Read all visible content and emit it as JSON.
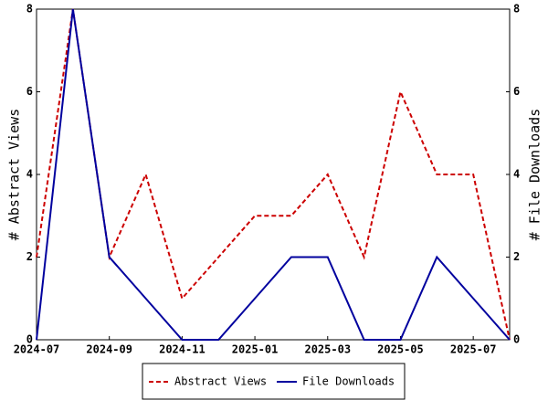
{
  "chart_data": {
    "type": "line",
    "x": [
      "2024-07",
      "2024-08",
      "2024-09",
      "2024-10",
      "2024-11",
      "2024-12",
      "2025-01",
      "2025-02",
      "2025-03",
      "2025-04",
      "2025-05",
      "2025-06",
      "2025-07",
      "2025-08"
    ],
    "xticks": [
      "2024-07",
      "2024-09",
      "2024-11",
      "2025-01",
      "2025-03",
      "2025-05",
      "2025-07"
    ],
    "ylabel": "# Abstract Views",
    "y2label": "# File Downloads",
    "ylim": [
      0,
      8
    ],
    "yticks": [
      0,
      2,
      4,
      6,
      8
    ],
    "y2lim": [
      0,
      8
    ],
    "y2ticks": [
      0,
      2,
      4,
      6,
      8
    ],
    "legend": "bottom",
    "series": [
      {
        "name": "Abstract Views",
        "color": "#cc0000",
        "dash": true,
        "values": [
          2,
          8,
          2,
          4,
          1,
          2,
          3,
          3,
          4,
          2,
          6,
          4,
          4,
          0
        ]
      },
      {
        "name": "File Downloads",
        "color": "#00009e",
        "dash": false,
        "axis": "y2",
        "values": [
          0,
          8,
          2,
          1,
          0,
          0,
          1,
          2,
          2,
          0,
          0,
          2,
          1,
          0
        ]
      }
    ]
  }
}
